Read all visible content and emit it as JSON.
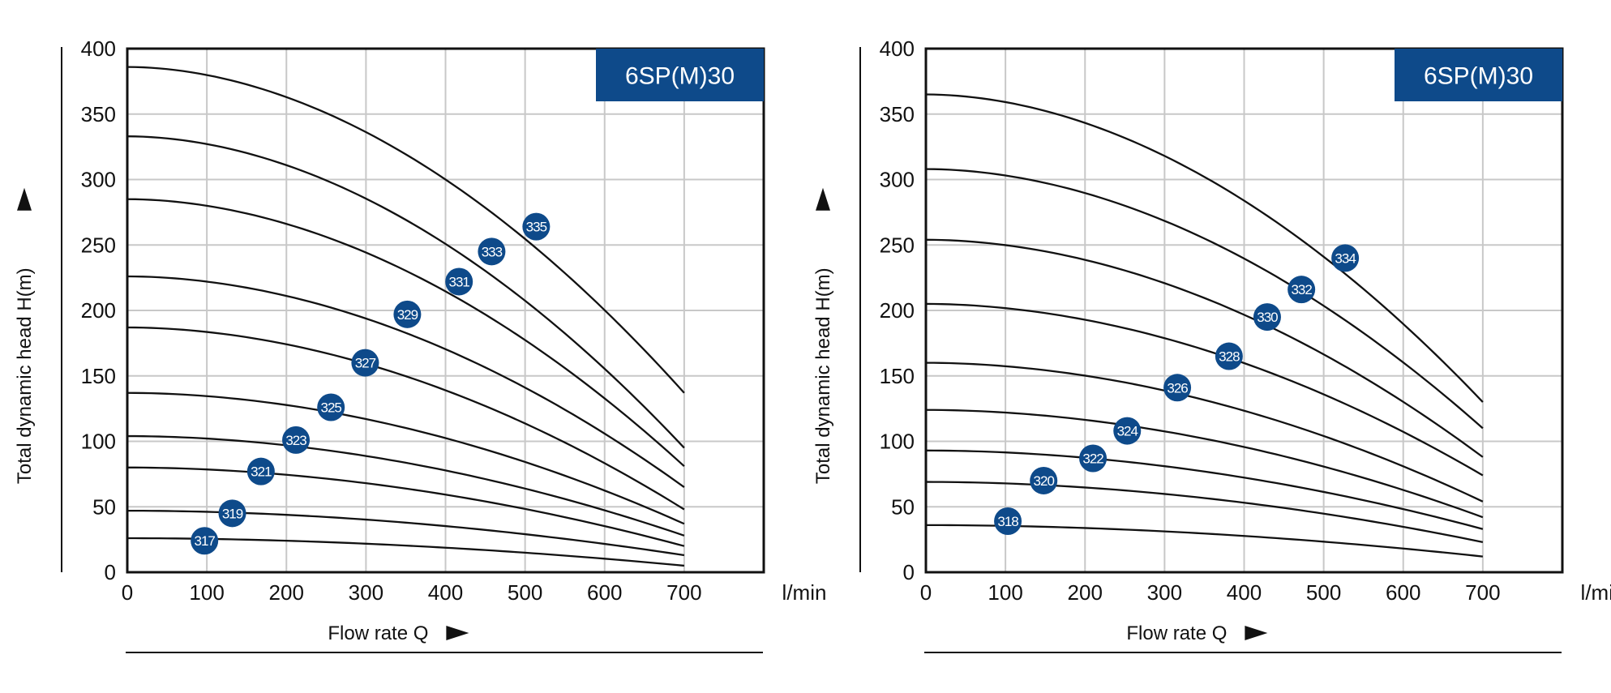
{
  "chart_data": [
    {
      "type": "line",
      "title": "6SP(M)30",
      "xlabel": "Flow rate Q",
      "ylabel": "Total dynamic head H(m)",
      "x_unit": "l/min",
      "xlim": [
        0,
        800
      ],
      "ylim": [
        0,
        400
      ],
      "x_ticks": [
        "0",
        "100",
        "200",
        "300",
        "400",
        "500",
        "600",
        "700"
      ],
      "y_ticks": [
        "0",
        "50",
        "100",
        "150",
        "200",
        "250",
        "300",
        "350",
        "400"
      ],
      "grid": true,
      "colors": {
        "curve": "#111111",
        "marker": "#0e4a8a",
        "title_bg": "#0e4a8a",
        "grid": "#c8c8c8"
      },
      "series": [
        {
          "name": "317",
          "x": [
            0,
            700
          ],
          "values": [
            26,
            5
          ],
          "label_x": 97,
          "label_y": 24
        },
        {
          "name": "319",
          "x": [
            0,
            700
          ],
          "values": [
            47,
            13
          ],
          "label_x": 132,
          "label_y": 45
        },
        {
          "name": "321",
          "x": [
            0,
            700
          ],
          "values": [
            80,
            20
          ],
          "label_x": 168,
          "label_y": 77
        },
        {
          "name": "323",
          "x": [
            0,
            700
          ],
          "values": [
            104,
            28
          ],
          "label_x": 212,
          "label_y": 101
        },
        {
          "name": "325",
          "x": [
            0,
            700
          ],
          "values": [
            137,
            37
          ],
          "label_x": 256,
          "label_y": 126
        },
        {
          "name": "327",
          "x": [
            0,
            700
          ],
          "values": [
            187,
            48
          ],
          "label_x": 299,
          "label_y": 160
        },
        {
          "name": "329",
          "x": [
            0,
            700
          ],
          "values": [
            226,
            65
          ],
          "label_x": 352,
          "label_y": 197
        },
        {
          "name": "331",
          "x": [
            0,
            700
          ],
          "values": [
            285,
            81
          ],
          "label_x": 417,
          "label_y": 222
        },
        {
          "name": "333",
          "x": [
            0,
            700
          ],
          "values": [
            333,
            95
          ],
          "label_x": 458,
          "label_y": 245
        },
        {
          "name": "335",
          "x": [
            0,
            700
          ],
          "values": [
            386,
            137
          ],
          "label_x": 514,
          "label_y": 264
        }
      ]
    },
    {
      "type": "line",
      "title": "6SP(M)30",
      "xlabel": "Flow rate Q",
      "ylabel": "Total dynamic head H(m)",
      "x_unit": "l/min",
      "xlim": [
        0,
        800
      ],
      "ylim": [
        0,
        400
      ],
      "x_ticks": [
        "0",
        "100",
        "200",
        "300",
        "400",
        "500",
        "600",
        "700"
      ],
      "y_ticks": [
        "0",
        "50",
        "100",
        "150",
        "200",
        "250",
        "300",
        "350",
        "400"
      ],
      "grid": true,
      "colors": {
        "curve": "#111111",
        "marker": "#0e4a8a",
        "title_bg": "#0e4a8a",
        "grid": "#c8c8c8"
      },
      "series": [
        {
          "name": "318",
          "x": [
            0,
            700
          ],
          "values": [
            36,
            12
          ],
          "label_x": 103,
          "label_y": 39
        },
        {
          "name": "320",
          "x": [
            0,
            700
          ],
          "values": [
            69,
            23
          ],
          "label_x": 148,
          "label_y": 70
        },
        {
          "name": "322",
          "x": [
            0,
            700
          ],
          "values": [
            93,
            33
          ],
          "label_x": 210,
          "label_y": 87
        },
        {
          "name": "324",
          "x": [
            0,
            700
          ],
          "values": [
            124,
            42
          ],
          "label_x": 253,
          "label_y": 108
        },
        {
          "name": "326",
          "x": [
            0,
            700
          ],
          "values": [
            160,
            54
          ],
          "label_x": 316,
          "label_y": 141
        },
        {
          "name": "328",
          "x": [
            0,
            700
          ],
          "values": [
            205,
            74
          ],
          "label_x": 381,
          "label_y": 165
        },
        {
          "name": "330",
          "x": [
            0,
            700
          ],
          "values": [
            254,
            88
          ],
          "label_x": 429,
          "label_y": 195
        },
        {
          "name": "332",
          "x": [
            0,
            700
          ],
          "values": [
            308,
            110
          ],
          "label_x": 472,
          "label_y": 216
        },
        {
          "name": "334",
          "x": [
            0,
            700
          ],
          "values": [
            365,
            130
          ],
          "label_x": 527,
          "label_y": 240
        }
      ]
    }
  ]
}
